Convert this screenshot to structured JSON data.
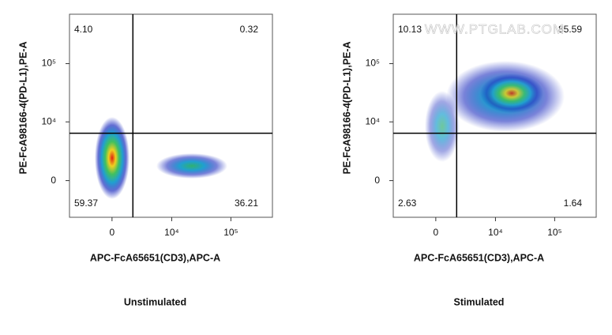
{
  "chart_data": [
    {
      "type": "density",
      "title": "Unstimulated",
      "xlabel": "APC-FcA65651(CD3),APC-A",
      "ylabel": "PE-FcA98166-4(PD-L1),PE-A",
      "scale": "biexponential",
      "xlim": [
        -5000,
        500000
      ],
      "ylim": [
        -4000,
        700000
      ],
      "xticks": [
        0,
        {
          "value": 10000,
          "label": "10⁴"
        },
        {
          "value": 100000,
          "label": "10⁵"
        }
      ],
      "yticks": [
        0,
        {
          "value": 10000,
          "label": "10⁴"
        },
        {
          "value": 100000,
          "label": "10⁵"
        }
      ],
      "gate": {
        "x": 1800,
        "y": 6300
      },
      "quadrants": {
        "values": [
          4.1,
          0.32,
          59.37,
          36.21
        ],
        "value_labels": [
          "4.10",
          "0.32",
          "59.37",
          "36.21"
        ]
      }
    },
    {
      "type": "density",
      "title": "Stimulated",
      "xlabel": "APC-FcA65651(CD3),APC-A",
      "ylabel": "PE-FcA98166-4(PD-L1),PE-A",
      "scale": "biexponential",
      "xlim": [
        -5000,
        500000
      ],
      "ylim": [
        -4000,
        700000
      ],
      "xticks": [
        0,
        {
          "value": 10000,
          "label": "10⁴"
        },
        {
          "value": 100000,
          "label": "10⁵"
        }
      ],
      "yticks": [
        0,
        {
          "value": 10000,
          "label": "10⁴"
        },
        {
          "value": 100000,
          "label": "10⁵"
        }
      ],
      "gate": {
        "x": 1800,
        "y": 6300
      },
      "quadrants": {
        "values": [
          10.13,
          85.59,
          2.63,
          1.64
        ],
        "value_labels": [
          "10.13",
          "85.59",
          "2.63",
          "1.64"
        ]
      },
      "watermark": "WWW.PTGLAB.COM"
    }
  ]
}
